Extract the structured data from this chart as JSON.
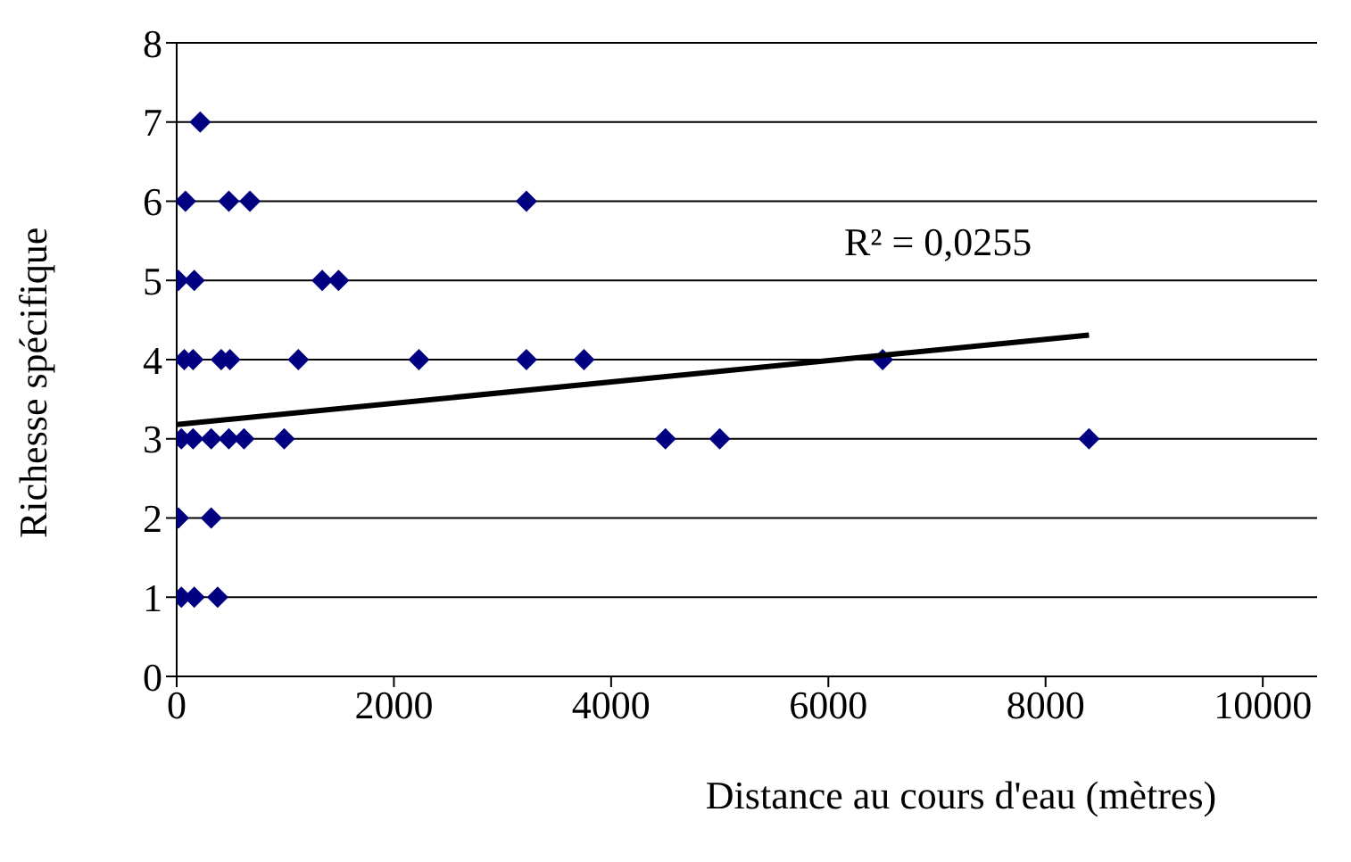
{
  "chart_data": {
    "type": "scatter",
    "xlabel": "Distance au cours d'eau (mètres)",
    "ylabel": "Richesse spécifique",
    "annotations": [
      "R² = 0,0255"
    ],
    "xlim": [
      0,
      10500
    ],
    "xticks": [
      0,
      2000,
      4000,
      6000,
      8000,
      10000
    ],
    "ylim": [
      0,
      8
    ],
    "yticks": [
      0,
      1,
      2,
      3,
      4,
      5,
      6,
      7,
      8
    ],
    "grid": "y",
    "legend": false,
    "marker": "diamond",
    "series": [
      {
        "color": "#000080",
        "x": [
          216,
          81,
          480,
          674,
          3220,
          16,
          162,
          1340,
          1490,
          70,
          151,
          410,
          490,
          1120,
          2230,
          3220,
          3750,
          6500,
          43,
          151,
          318,
          480,
          620,
          990,
          4500,
          5000,
          8400,
          16,
          318,
          43,
          162,
          377
        ],
        "values": [
          7,
          6,
          6,
          6,
          6,
          5,
          5,
          5,
          5,
          4,
          4,
          4,
          4,
          4,
          4,
          4,
          4,
          4,
          3,
          3,
          3,
          3,
          3,
          3,
          3,
          3,
          3,
          2,
          2,
          1,
          1,
          1
        ]
      },
      {
        "type": "line",
        "marker": "none",
        "color": "#000000",
        "x": [
          0,
          8400
        ],
        "values": [
          3.18,
          4.31
        ]
      }
    ]
  }
}
